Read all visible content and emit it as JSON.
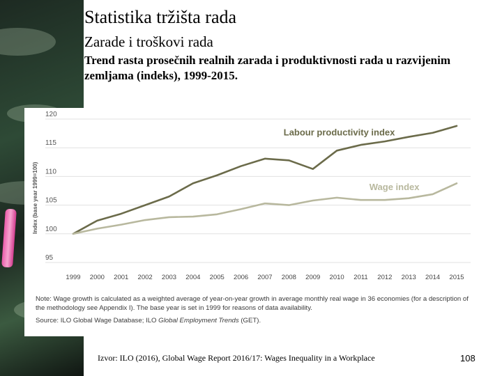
{
  "slide": {
    "title": "Statistika tržišta rada",
    "subtitle": "Zarade i troškovi rada",
    "description": "Trend rasta prosečnih realnih zarada i produktivnosti rada u razvijenim zemljama (indeks), 1999-2015.",
    "footer_source": "Izvor: ILO (2016), Global Wage Report 2016/17: Wages Inequality in a Workplace",
    "page_number": "108"
  },
  "figure": {
    "note": "Note: Wage growth is calculated as a weighted average of year-on-year growth in average monthly real wage in 36 economies (for a description of the methodology see Appendix I). The base year is set in 1999 for reasons of data availability.",
    "source_prefix": "Source: ILO Global Wage Database; ILO ",
    "source_italic": "Global Employment Trends",
    "source_suffix": " (GET)."
  },
  "chart_data": {
    "type": "line",
    "title": "",
    "xlabel": "",
    "ylabel": "Index (base year 1999=100)",
    "x": [
      "1999",
      "2000",
      "2001",
      "2002",
      "2003",
      "2004",
      "2005",
      "2006",
      "2007",
      "2008",
      "2009",
      "2010",
      "2011",
      "2012",
      "2013",
      "2014",
      "2015"
    ],
    "ylim": [
      95,
      120
    ],
    "yticks": [
      95,
      100,
      105,
      110,
      115,
      120
    ],
    "grid": true,
    "series": [
      {
        "name": "Labour productivity index",
        "color": "#6b6b4a",
        "values": [
          100,
          102.3,
          103.5,
          105,
          106.5,
          108.8,
          110.2,
          111.8,
          113.1,
          112.8,
          111.3,
          114.5,
          115.5,
          116.1,
          116.9,
          117.6,
          118.8
        ]
      },
      {
        "name": "Wage index",
        "color": "#b8b89e",
        "values": [
          100,
          100.9,
          101.6,
          102.4,
          102.9,
          103.0,
          103.4,
          104.3,
          105.3,
          105.0,
          105.8,
          106.3,
          105.9,
          105.9,
          106.2,
          106.9,
          108.8
        ]
      }
    ]
  }
}
